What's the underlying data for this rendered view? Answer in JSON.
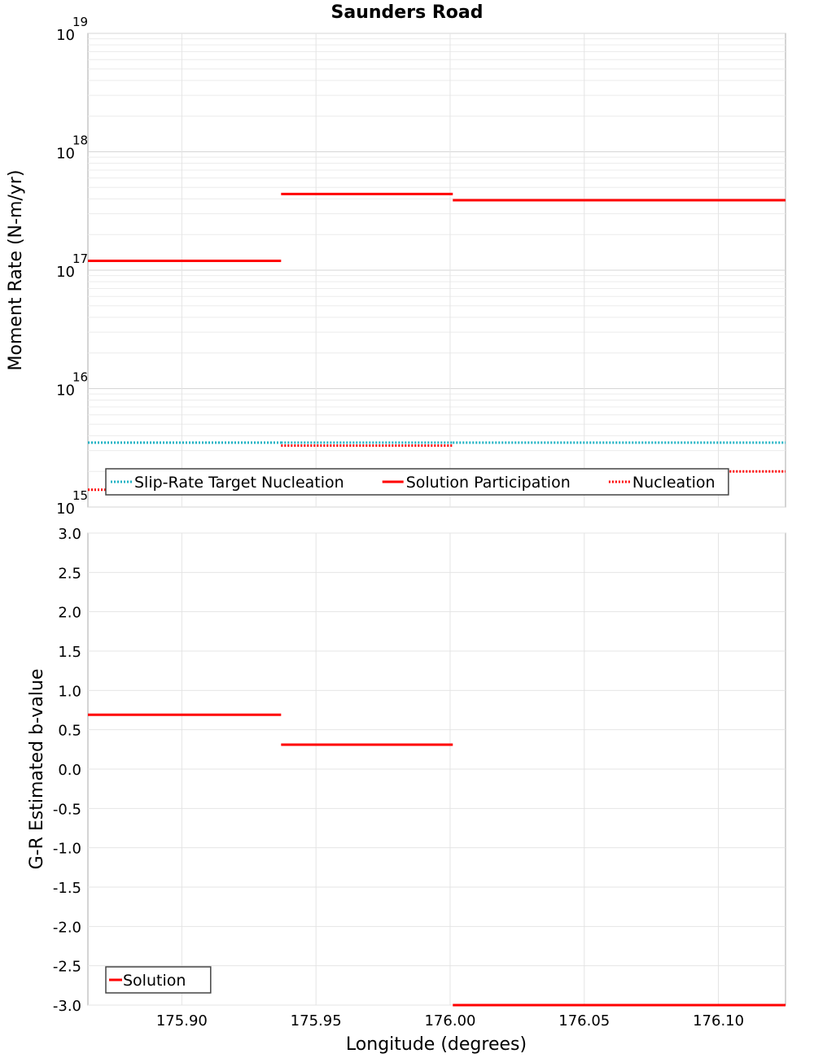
{
  "chart_data": [
    {
      "type": "line",
      "title": "Saunders Road",
      "ylabel": "Moment Rate (N-m/yr)",
      "xlabel": "",
      "yscale": "log",
      "ylim": [
        1000000000000000.0,
        1e+19
      ],
      "xlim": [
        175.865,
        176.125
      ],
      "y_ticks": [
        {
          "base": "10",
          "exp": "15"
        },
        {
          "base": "10",
          "exp": "16"
        },
        {
          "base": "10",
          "exp": "17"
        },
        {
          "base": "10",
          "exp": "18"
        },
        {
          "base": "10",
          "exp": "19"
        }
      ],
      "grid": true,
      "legend_position": "bottom-left",
      "series": [
        {
          "name": "Slip-Rate Target Nucleation",
          "style": "dotted",
          "color": "#1fb3c4",
          "segments": [
            {
              "x0": 175.865,
              "x1": 175.937,
              "y": 3500000000000000.0
            },
            {
              "x0": 175.937,
              "x1": 176.001,
              "y": 3500000000000000.0
            },
            {
              "x0": 176.001,
              "x1": 176.125,
              "y": 3500000000000000.0
            }
          ]
        },
        {
          "name": "Solution Participation",
          "style": "solid",
          "color": "#ff0000",
          "segments": [
            {
              "x0": 175.865,
              "x1": 175.937,
              "y": 1.2e+17
            },
            {
              "x0": 175.937,
              "x1": 176.001,
              "y": 4.4e+17
            },
            {
              "x0": 176.001,
              "x1": 176.125,
              "y": 3.9e+17
            }
          ]
        },
        {
          "name": "Nucleation",
          "style": "dotted",
          "color": "#ff0000",
          "segments": [
            {
              "x0": 175.865,
              "x1": 175.937,
              "y": 1400000000000000.0
            },
            {
              "x0": 175.937,
              "x1": 176.001,
              "y": 3300000000000000.0
            },
            {
              "x0": 176.001,
              "x1": 176.125,
              "y": 2000000000000000.0
            }
          ]
        }
      ]
    },
    {
      "type": "line",
      "title": "",
      "ylabel": "G-R Estimated b-value",
      "xlabel": "Longitude (degrees)",
      "ylim": [
        -3.0,
        3.0
      ],
      "xlim": [
        175.865,
        176.125
      ],
      "y_ticks": [
        "-3.0",
        "-2.5",
        "-2.0",
        "-1.5",
        "-1.0",
        "-0.5",
        "0.0",
        "0.5",
        "1.0",
        "1.5",
        "2.0",
        "2.5",
        "3.0"
      ],
      "x_ticks": [
        "175.90",
        "175.95",
        "176.00",
        "176.05",
        "176.10"
      ],
      "grid": true,
      "legend_position": "bottom-left",
      "series": [
        {
          "name": "Solution",
          "style": "solid",
          "color": "#ff0000",
          "segments": [
            {
              "x0": 175.865,
              "x1": 175.937,
              "y": 0.69
            },
            {
              "x0": 175.937,
              "x1": 176.001,
              "y": 0.31
            },
            {
              "x0": 176.001,
              "x1": 176.125,
              "y": -3.0
            }
          ]
        }
      ]
    }
  ]
}
